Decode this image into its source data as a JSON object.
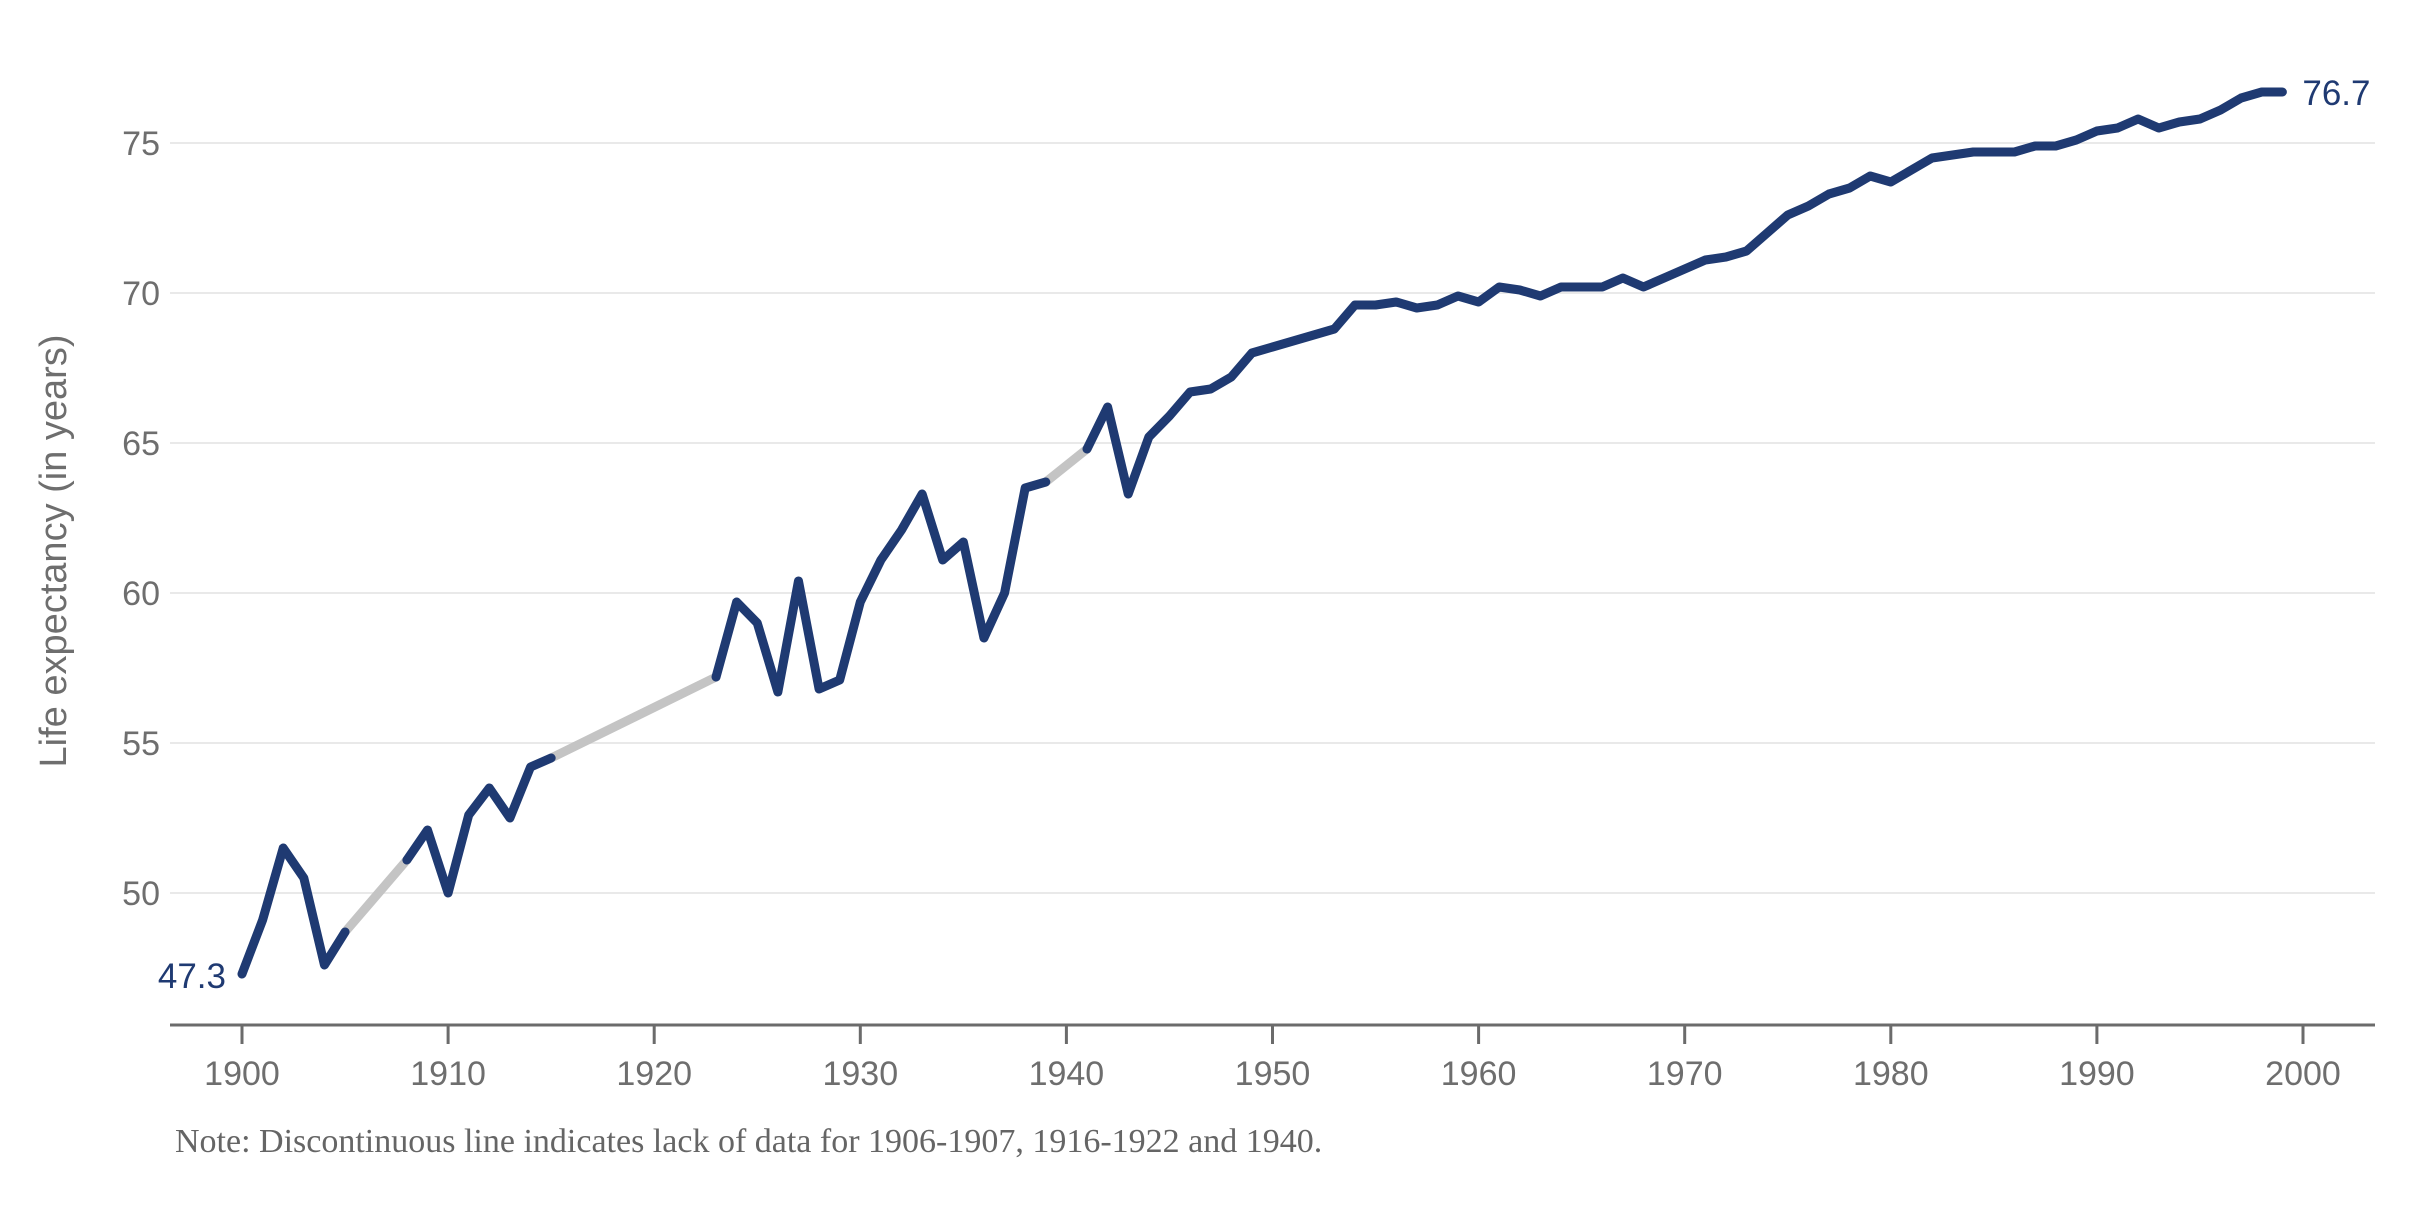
{
  "chart_data": {
    "type": "line",
    "title": "",
    "xlabel": "",
    "ylabel": "Life expectancy (in years)",
    "note": "Note: Discontinuous line indicates lack of data for 1906-1907, 1916-1922 and 1940.",
    "first_point_label": "47.3",
    "last_point_label": "76.7",
    "x_ticks": [
      1900,
      1910,
      1920,
      1930,
      1940,
      1950,
      1960,
      1970,
      1980,
      1990,
      2000
    ],
    "y_ticks": [
      50,
      55,
      60,
      65,
      70,
      75
    ],
    "xlim": [
      1896.5,
      2003.5
    ],
    "ylim": [
      45.9,
      77.6
    ],
    "grid": "horizontal-only",
    "legend": "none",
    "start_year": 1900,
    "end_year": 1999,
    "missing_year_ranges": [
      [
        1906,
        1907
      ],
      [
        1916,
        1922
      ],
      [
        1940,
        1940
      ]
    ],
    "series": [
      {
        "name": "Life expectancy (in years)",
        "values": [
          47.3,
          49.1,
          51.5,
          50.5,
          47.6,
          48.7,
          null,
          null,
          51.1,
          52.1,
          50.0,
          52.6,
          53.5,
          52.5,
          54.2,
          54.5,
          null,
          null,
          null,
          null,
          null,
          null,
          null,
          57.2,
          59.7,
          59.0,
          56.7,
          60.4,
          56.8,
          57.1,
          59.7,
          61.1,
          62.1,
          63.3,
          61.1,
          61.7,
          58.5,
          60.0,
          63.5,
          63.7,
          null,
          64.8,
          66.2,
          63.3,
          65.2,
          65.9,
          66.7,
          66.8,
          67.2,
          68.0,
          68.2,
          68.4,
          68.6,
          68.8,
          69.6,
          69.6,
          69.7,
          69.5,
          69.6,
          69.9,
          69.7,
          70.2,
          70.1,
          69.9,
          70.2,
          70.2,
          70.2,
          70.5,
          70.2,
          70.5,
          70.8,
          71.1,
          71.2,
          71.4,
          72.0,
          72.6,
          72.9,
          73.3,
          73.5,
          73.9,
          73.7,
          74.1,
          74.5,
          74.6,
          74.7,
          74.7,
          74.7,
          74.9,
          74.9,
          75.1,
          75.4,
          75.5,
          75.8,
          75.5,
          75.7,
          75.8,
          76.1,
          76.5,
          76.7,
          76.7
        ]
      }
    ],
    "colors": {
      "line": "#1f3a72",
      "gap_line": "#c4c4c4",
      "gridline": "#e9e9e9",
      "axis": "#6b6b6b",
      "tick_text": "#6e6e6e",
      "note_text": "#656565",
      "background": "#ffffff"
    }
  }
}
